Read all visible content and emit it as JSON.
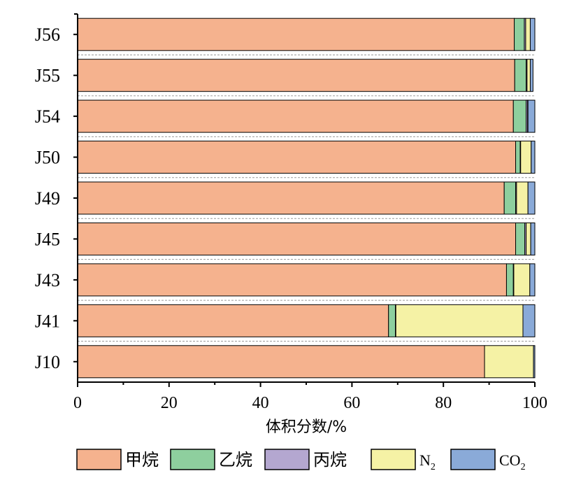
{
  "chart_data": {
    "type": "bar",
    "orientation": "horizontal",
    "stacked": true,
    "categories": [
      "J56",
      "J55",
      "J54",
      "J50",
      "J49",
      "J45",
      "J43",
      "J41",
      "J10"
    ],
    "series": [
      {
        "name": "甲烷",
        "color": "#F5B28E",
        "values": [
          95.5,
          95.6,
          95.3,
          95.8,
          93.3,
          95.8,
          93.8,
          68.0,
          89.0
        ]
      },
      {
        "name": "乙烷",
        "color": "#8ECF9E",
        "values": [
          2.2,
          2.5,
          2.8,
          1.0,
          2.5,
          2.0,
          1.5,
          1.5,
          0.0
        ]
      },
      {
        "name": "丙烷",
        "color": "#B4A7D0",
        "values": [
          0.3,
          0.2,
          0.3,
          0.1,
          0.2,
          0.3,
          0.1,
          0.1,
          0.0
        ]
      },
      {
        "name": "N2",
        "color": "#F5F2A5",
        "values": [
          1.0,
          0.7,
          0.1,
          2.3,
          2.5,
          1.0,
          3.5,
          27.8,
          10.7
        ]
      },
      {
        "name": "CO2",
        "color": "#8AAAD8",
        "values": [
          1.0,
          0.6,
          1.5,
          0.8,
          1.5,
          0.9,
          1.1,
          2.6,
          0.3
        ]
      }
    ],
    "xlabel": "体积分数/%",
    "ylabel": "",
    "xlim": [
      0,
      100
    ],
    "xticks": [
      "0",
      "20",
      "40",
      "60",
      "80",
      "100"
    ],
    "legend": {
      "position": "bottom",
      "items": [
        {
          "label": "甲烷",
          "color": "#F5B28E",
          "sub": ""
        },
        {
          "label": "乙烷",
          "color": "#8ECF9E",
          "sub": ""
        },
        {
          "label": "丙烷",
          "color": "#B4A7D0",
          "sub": ""
        },
        {
          "label": "N",
          "color": "#F5F2A5",
          "sub": "2"
        },
        {
          "label": "CO",
          "color": "#8AAAD8",
          "sub": "2"
        }
      ]
    },
    "grid": false
  }
}
